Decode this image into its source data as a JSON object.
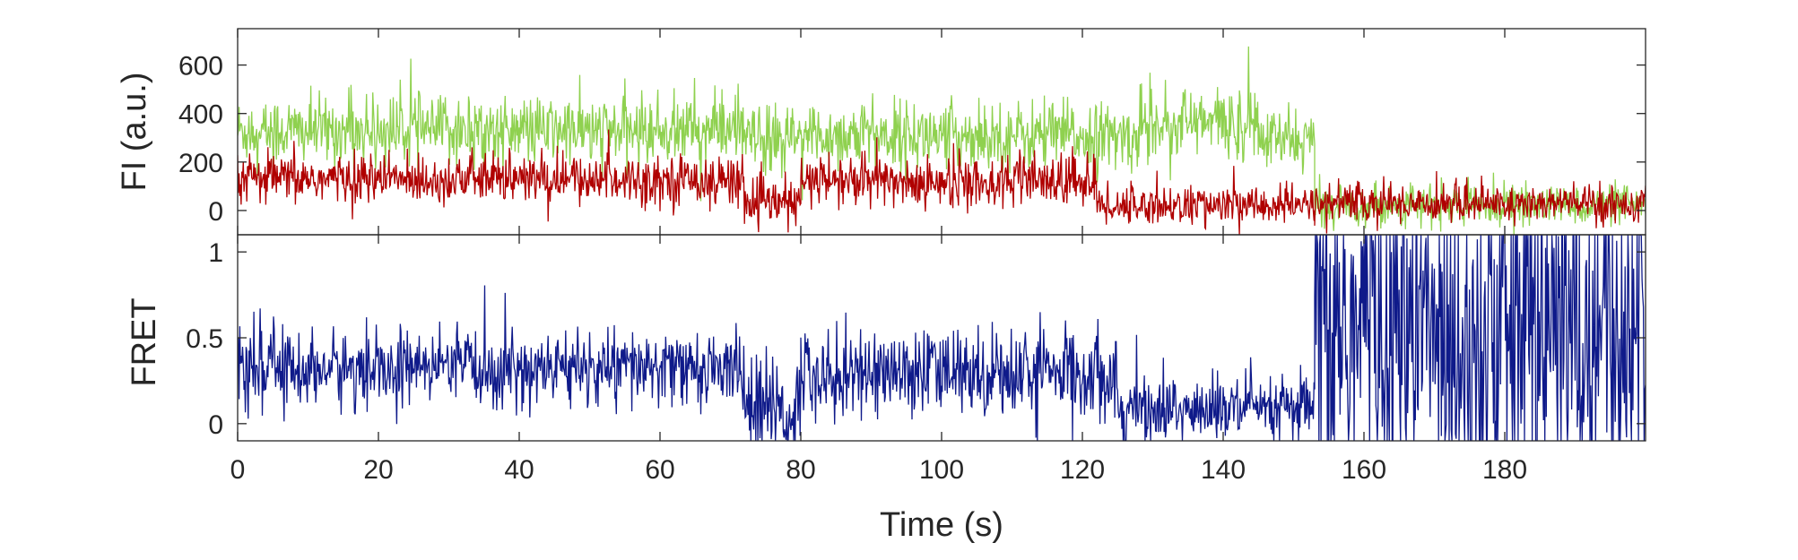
{
  "chart_data": [
    {
      "type": "line",
      "ylabel": "FI (a.u.)",
      "xlim": [
        0,
        200
      ],
      "ylim": [
        -100,
        750
      ],
      "yticks": [
        0,
        200,
        400,
        600
      ],
      "xticks": [
        0,
        20,
        40,
        60,
        80,
        100,
        120,
        140,
        160,
        180
      ],
      "xticklabels_visible": false,
      "grid": false,
      "series": [
        {
          "color": "#8fd14f",
          "segments": [
            {
              "t": [
                0,
                72
              ],
              "mean": 330,
              "noise": 70
            },
            {
              "t": [
                72,
                80
              ],
              "mean": 290,
              "noise": 70
            },
            {
              "t": [
                80,
                122
              ],
              "mean": 310,
              "noise": 70
            },
            {
              "t": [
                122,
                128
              ],
              "mean": 300,
              "noise": 70
            },
            {
              "t": [
                128,
                145
              ],
              "mean": 360,
              "noise": 75
            },
            {
              "t": [
                145,
                153
              ],
              "mean": 290,
              "noise": 65
            },
            {
              "t": [
                153,
                200
              ],
              "mean": 20,
              "noise": 40
            }
          ]
        },
        {
          "color": "#b00000",
          "segments": [
            {
              "t": [
                0,
                72
              ],
              "mean": 130,
              "noise": 50
            },
            {
              "t": [
                72,
                80
              ],
              "mean": 30,
              "noise": 45
            },
            {
              "t": [
                80,
                122
              ],
              "mean": 120,
              "noise": 55
            },
            {
              "t": [
                122,
                153
              ],
              "mean": 20,
              "noise": 40
            },
            {
              "t": [
                153,
                200
              ],
              "mean": 30,
              "noise": 40
            }
          ]
        }
      ]
    },
    {
      "type": "line",
      "ylabel": "FRET",
      "xlabel": "Time (s)",
      "xlim": [
        0,
        200
      ],
      "ylim": [
        -0.1,
        1.1
      ],
      "yticks": [
        0,
        0.5,
        1
      ],
      "yticklabels": [
        "0",
        "0.5",
        "1"
      ],
      "xticks": [
        0,
        20,
        40,
        60,
        80,
        100,
        120,
        140,
        160,
        180
      ],
      "xticklabels": [
        "0",
        "20",
        "40",
        "60",
        "80",
        "100",
        "120",
        "140",
        "160",
        "180"
      ],
      "grid": false,
      "series": [
        {
          "color": "#0f1a8a",
          "segments": [
            {
              "t": [
                0,
                72
              ],
              "mean": 0.32,
              "noise": 0.11
            },
            {
              "t": [
                72,
                80
              ],
              "mean": 0.08,
              "noise": 0.15
            },
            {
              "t": [
                80,
                125
              ],
              "mean": 0.3,
              "noise": 0.13
            },
            {
              "t": [
                125,
                153
              ],
              "mean": 0.08,
              "noise": 0.1
            },
            {
              "t": [
                153,
                200
              ],
              "mean": 0.55,
              "noise": 0.6
            }
          ]
        }
      ]
    }
  ]
}
